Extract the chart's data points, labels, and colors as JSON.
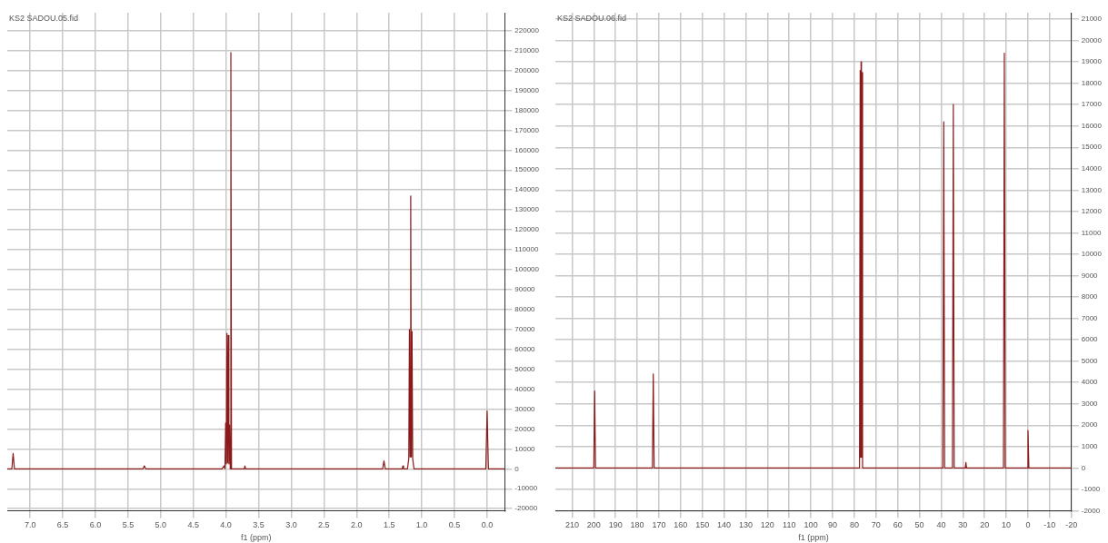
{
  "chart_data": [
    {
      "type": "line",
      "xlabel": "f1 (ppm)",
      "annotations": [
        "KS2 SADOU.05.fid"
      ],
      "xlim": [
        7.35,
        -0.27
      ],
      "xticks": [
        {
          "value": 7,
          "label": "7.0"
        },
        6.5,
        {
          "value": 6,
          "label": "6.0"
        },
        5.5,
        {
          "value": 5,
          "label": "5.0"
        },
        4.5,
        {
          "value": 4,
          "label": "4.0"
        },
        3.5,
        {
          "value": 3,
          "label": "3.0"
        },
        2.5,
        {
          "value": 2,
          "label": "2.0"
        },
        1.5,
        {
          "value": 1,
          "label": "1.0"
        },
        0.5,
        {
          "value": 0,
          "label": "0.0"
        }
      ],
      "ylim": [
        -21000,
        229000
      ],
      "yticks": [
        -20000,
        -10000,
        0,
        10000,
        20000,
        30000,
        40000,
        50000,
        60000,
        70000,
        80000,
        90000,
        100000,
        110000,
        120000,
        130000,
        140000,
        150000,
        160000,
        170000,
        180000,
        190000,
        200000,
        210000,
        220000
      ],
      "grid": true,
      "marker": "none",
      "line_style": "solid",
      "series": [
        {
          "color": "#8b1a1a",
          "x": [
            7.35,
            7.28,
            7.26,
            7.24,
            5.27,
            5.25,
            5.23,
            4.06,
            4.03,
            4.015,
            4.005,
            3.995,
            3.985,
            3.975,
            3.965,
            3.955,
            3.945,
            3.935,
            3.925,
            3.915,
            3.72,
            3.71,
            3.7,
            1.6,
            1.58,
            1.56,
            1.3,
            1.29,
            1.28,
            1.22,
            1.2,
            1.19,
            1.18,
            1.17,
            1.16,
            1.15,
            1.14,
            1.12,
            0.02,
            0,
            -0.02,
            -0.27
          ],
          "values": [
            0,
            0,
            7700,
            0,
            0,
            1500,
            0,
            0,
            1500,
            0,
            23000,
            2500,
            68000,
            3000,
            67000,
            2500,
            22000,
            0,
            209000,
            0,
            0,
            1500,
            0,
            0,
            4000,
            0,
            0,
            1500,
            0,
            0,
            5000,
            70000,
            6000,
            137000,
            6000,
            69000,
            5000,
            0,
            0,
            29000,
            0,
            0
          ]
        }
      ]
    },
    {
      "type": "line",
      "xlabel": "f1 (ppm)",
      "annotations": [
        "KS2 SADOU.06.fid"
      ],
      "xlim": [
        217.7,
        -20
      ],
      "xticks": [
        210,
        200,
        190,
        180,
        170,
        160,
        150,
        140,
        130,
        120,
        110,
        100,
        90,
        80,
        70,
        60,
        50,
        40,
        30,
        20,
        10,
        0,
        -10,
        -20
      ],
      "ylim": [
        -2000,
        21300
      ],
      "yticks": [
        -2000,
        -1000,
        0,
        1000,
        2000,
        3000,
        4000,
        5000,
        6000,
        7000,
        8000,
        9000,
        10000,
        11000,
        12000,
        13000,
        14000,
        15000,
        16000,
        17000,
        18000,
        19000,
        20000,
        21000
      ],
      "grid": true,
      "marker": "none",
      "line_style": "solid",
      "series": [
        {
          "color": "#8b1a1a",
          "x": [
            217.7,
            200,
            199.6,
            199.2,
            173,
            172.6,
            172.2,
            77.6,
            77.3,
            77.1,
            76.9,
            76.7,
            76.5,
            76.2,
            39.2,
            38.8,
            38.4,
            34.8,
            34.4,
            34,
            28.9,
            28.6,
            28.3,
            11.3,
            10.9,
            10.5,
            0.4,
            0,
            -0.4,
            -20
          ],
          "values": [
            0,
            0,
            3600,
            0,
            0,
            4400,
            0,
            0,
            18600,
            500,
            19000,
            500,
            18500,
            0,
            0,
            16200,
            0,
            0,
            17000,
            0,
            0,
            250,
            0,
            0,
            19400,
            0,
            0,
            1750,
            0,
            0
          ]
        }
      ]
    }
  ]
}
